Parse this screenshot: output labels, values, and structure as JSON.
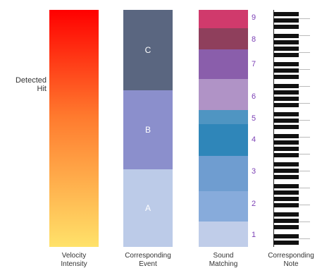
{
  "side_label": {
    "line1": "Detected",
    "line2": "Hit"
  },
  "captions": [
    {
      "line1": "Velocity",
      "line2": "Intensity"
    },
    {
      "line1": "Corresponding",
      "line2": "Event"
    },
    {
      "line1": "Sound",
      "line2": "Matching"
    },
    {
      "line1": "Corresponding",
      "line2": "Note"
    }
  ],
  "velocity": {
    "colors": {
      "top": "#ff0000",
      "mid": "#ff7a2e",
      "bottom": "#ffe26a"
    }
  },
  "events": [
    {
      "label": "C",
      "color": "#5a6680"
    },
    {
      "label": "B",
      "color": "#8b8fcc"
    },
    {
      "label": "A",
      "color": "#bccbe8"
    }
  ],
  "sound_levels": [
    {
      "number": "9",
      "color": "#d03a6c"
    },
    {
      "number": "8",
      "color": "#8f3f5c"
    },
    {
      "number": "7",
      "color": "#8a5eab"
    },
    {
      "number": "6",
      "color": "#b093c6"
    },
    {
      "number": "5",
      "color": "#4f95c2"
    },
    {
      "number": "4",
      "color": "#2f86b9"
    },
    {
      "number": "3",
      "color": "#6f9dd0"
    },
    {
      "number": "2",
      "color": "#87abdb"
    },
    {
      "number": "1",
      "color": "#c0cde9"
    }
  ]
}
